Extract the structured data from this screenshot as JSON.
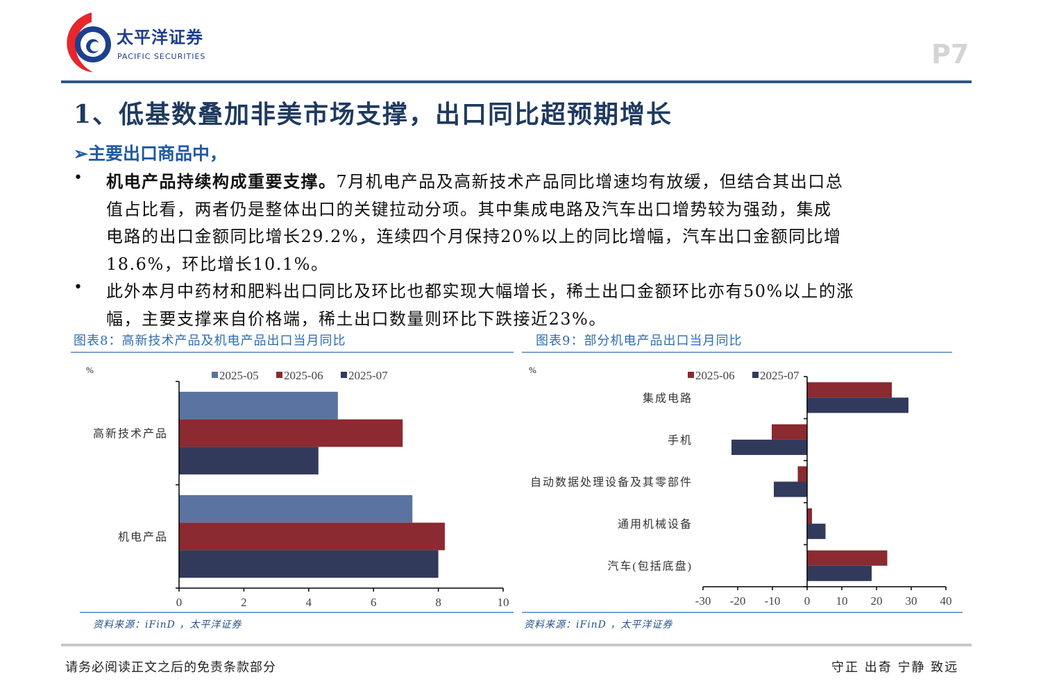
{
  "header": {
    "logo_cn": "太平洋证券",
    "logo_en": "PACIFIC SECURITIES",
    "page_number": "P7"
  },
  "title": "1、低基数叠加非美市场支撑，出口同比超预期增长",
  "subhead": "➢主要出口商品中，",
  "paragraphs": [
    {
      "bold_lead": "机电产品持续构成重要支撑。",
      "lines": [
        "7月机电产品及高新技术产品同比增速均有放缓，但结合其出口总",
        "值占比看，两者仍是整体出口的关键拉动分项。其中集成电路及汽车出口增势较为强劲，集成",
        "电路的出口金额同比增长29.2%，连续四个月保持20%以上的同比增幅，汽车出口金额同比增",
        "18.6%，环比增长10.1%。"
      ]
    },
    {
      "bold_lead": "",
      "lines": [
        "此外本月中药材和肥料出口同比及环比也都实现大幅增长，稀土出口金额环比亦有50%以上的涨",
        "幅，主要支撑来自价格端，稀土出口数量则环比下跌接近23%。"
      ]
    }
  ],
  "figures": [
    {
      "caption": "图表8：高新技术产品及机电产品出口当月同比",
      "source": "资料来源：iFinD ，太平洋证券"
    },
    {
      "caption": "图表9：部分机电产品出口当月同比",
      "source": "资料来源：iFinD ，太平洋证券"
    }
  ],
  "chart_data": [
    {
      "type": "bar",
      "orientation": "horizontal",
      "unit_label": "%",
      "categories": [
        "高新技术产品",
        "机电产品"
      ],
      "series": [
        {
          "name": "2025-05",
          "color": "#5b73a0",
          "values": [
            4.9,
            7.2
          ]
        },
        {
          "name": "2025-06",
          "color": "#8b2a30",
          "values": [
            6.9,
            8.2
          ]
        },
        {
          "name": "2025-07",
          "color": "#323a5c",
          "values": [
            4.3,
            8.0
          ]
        }
      ],
      "xlim": [
        0,
        10
      ],
      "xticks": [
        "0",
        "2",
        "4",
        "6",
        "8",
        "10"
      ],
      "legend": "top",
      "grid": false
    },
    {
      "type": "bar",
      "orientation": "horizontal",
      "unit_label": "%",
      "categories": [
        "集成电路",
        "手机",
        "自动数据处理设备及其零部件",
        "通用机械设备",
        "汽车(包括底盘)"
      ],
      "series": [
        {
          "name": "2025-06",
          "color": "#8b2a30",
          "values": [
            24.4,
            -10.2,
            -2.7,
            1.4,
            23.1
          ]
        },
        {
          "name": "2025-07",
          "color": "#323a5c",
          "values": [
            29.2,
            -21.8,
            -9.6,
            5.3,
            18.6
          ]
        }
      ],
      "xlim": [
        -30,
        40
      ],
      "xticks": [
        "-30",
        "-20",
        "-10",
        "0",
        "10",
        "20",
        "30",
        "40"
      ],
      "legend": "top",
      "grid": false
    }
  ],
  "footer": {
    "disclaimer": "请务必阅读正文之后的免责条款部分",
    "motto": "守正 出奇 宁静 致远"
  }
}
